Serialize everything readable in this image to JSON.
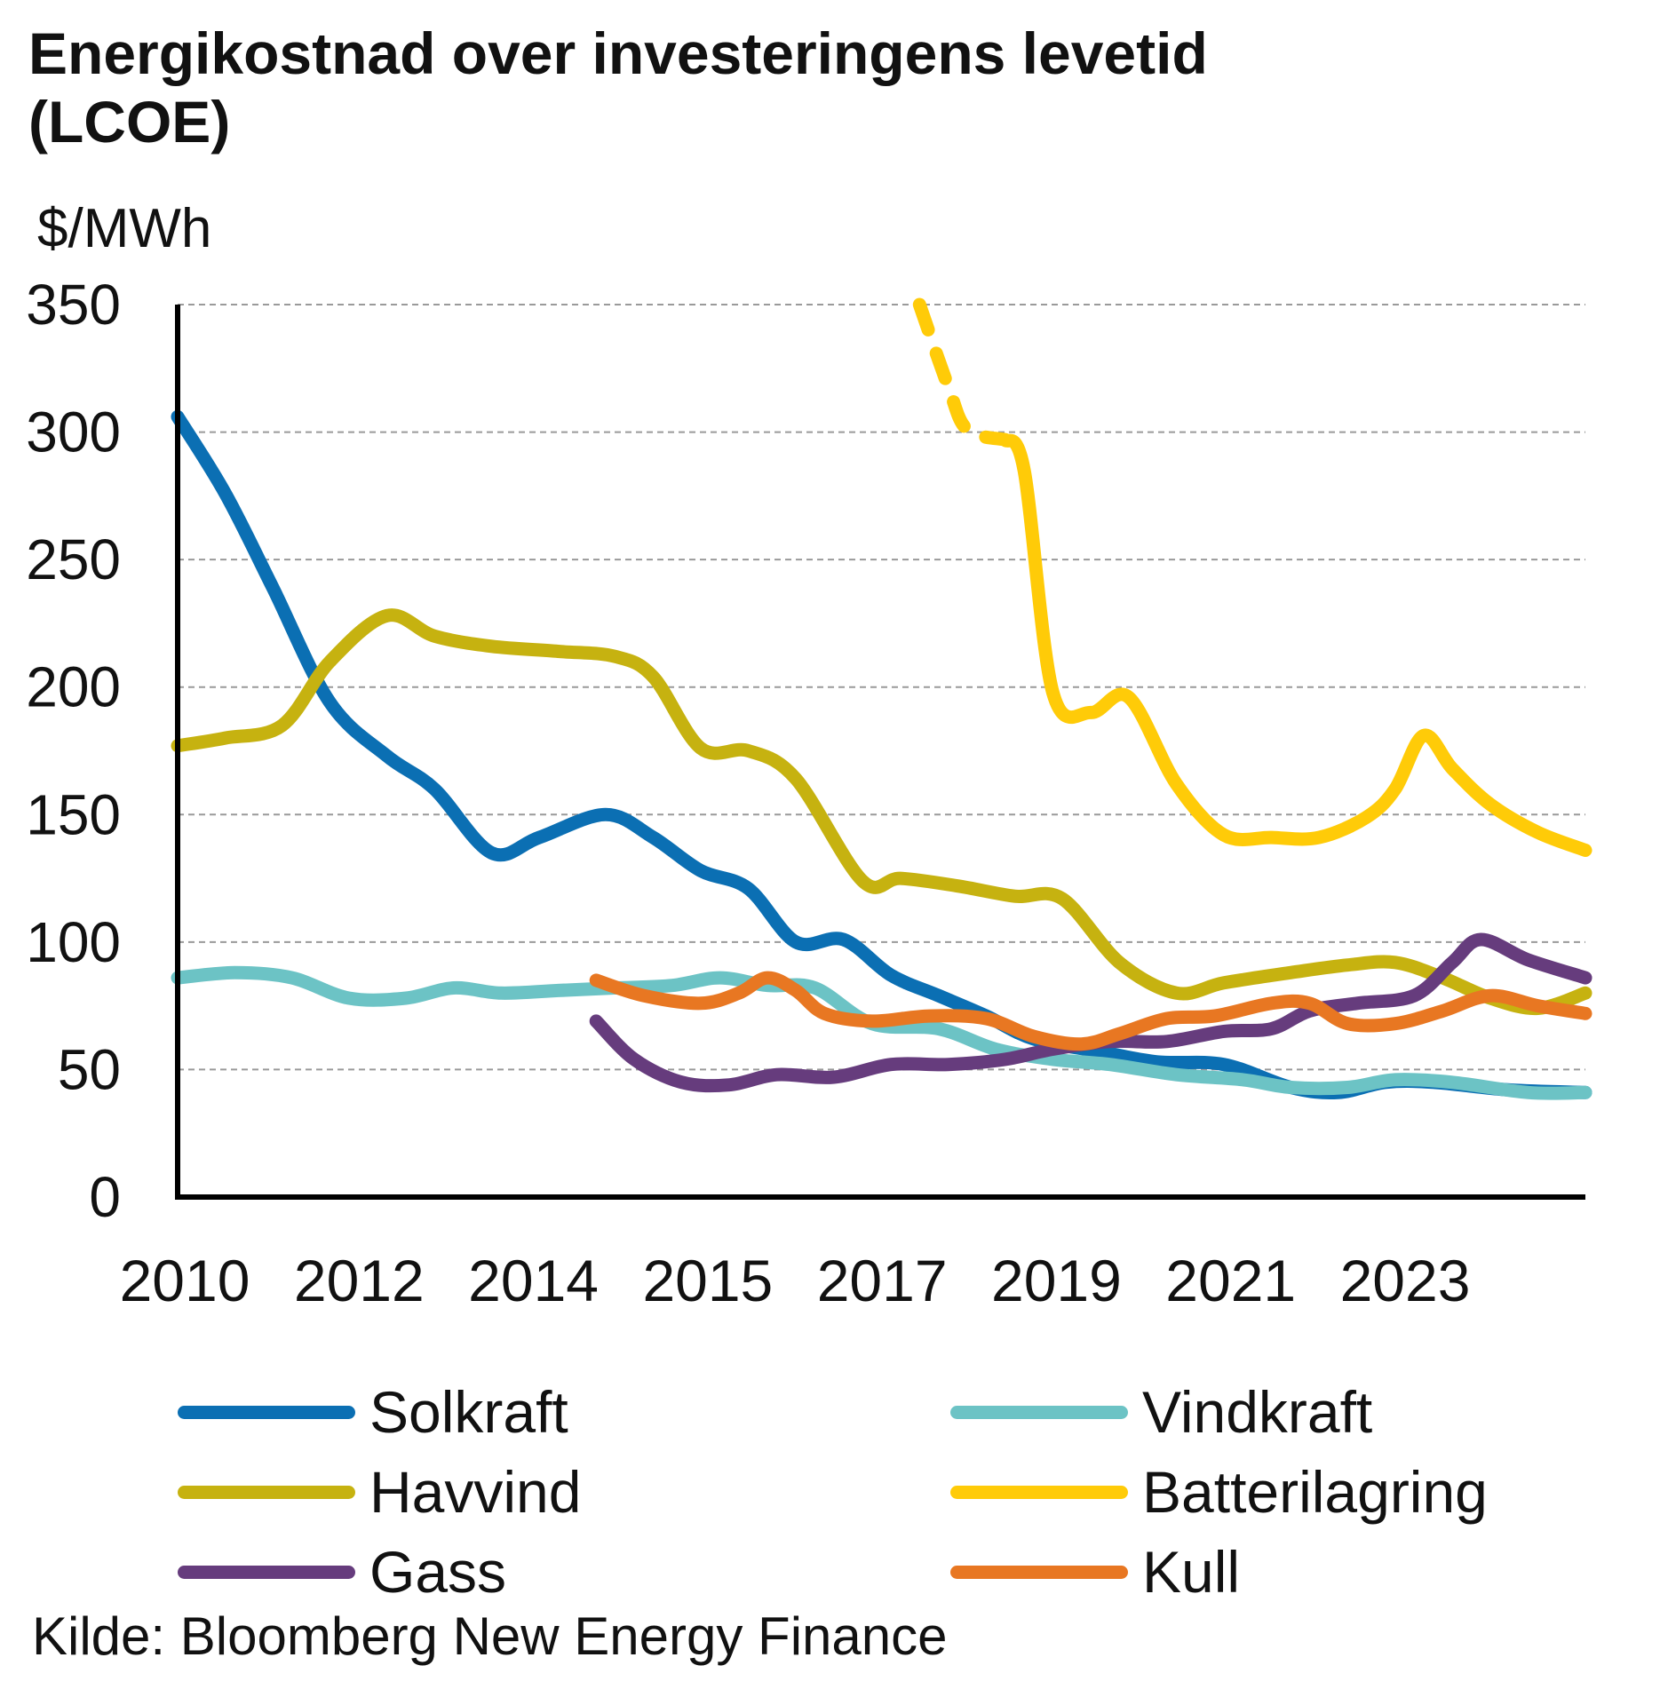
{
  "title": "Energikostnad over investeringens levetid (LCOE)",
  "source": "Kilde: Bloomberg New Energy Finance",
  "chart_data": {
    "type": "line",
    "title": "Energikostnad over investeringens levetid (LCOE)",
    "ylabel": "$/MWh",
    "xlabel": "",
    "ylim": [
      0,
      350
    ],
    "yticks": [
      "0",
      "50",
      "100",
      "150",
      "200",
      "250",
      "300",
      "350"
    ],
    "x_ticks": [
      "2010",
      "2012",
      "2014",
      "2015",
      "2017",
      "2019",
      "2021",
      "2023"
    ],
    "x_range": [
      0,
      14.8
    ],
    "grid": true,
    "legend_position": "bottom",
    "series": [
      {
        "name": "Solkraft",
        "color": "#0B6FB3",
        "points": [
          [
            0,
            306
          ],
          [
            0.5,
            276
          ],
          [
            1,
            239
          ],
          [
            1.6,
            194
          ],
          [
            2.2,
            173
          ],
          [
            2.7,
            160
          ],
          [
            3.3,
            135
          ],
          [
            3.8,
            141
          ],
          [
            4.5,
            150
          ],
          [
            5.0,
            141
          ],
          [
            5.5,
            128
          ],
          [
            6.0,
            121
          ],
          [
            6.5,
            100
          ],
          [
            7.0,
            101
          ],
          [
            7.5,
            87
          ],
          [
            8.0,
            79
          ],
          [
            8.5,
            71
          ],
          [
            9.0,
            62
          ],
          [
            9.7,
            57
          ],
          [
            10.3,
            53
          ],
          [
            11.0,
            52
          ],
          [
            11.7,
            43
          ],
          [
            12.2,
            41
          ],
          [
            12.7,
            45
          ],
          [
            13.2,
            45
          ],
          [
            14.0,
            42
          ],
          [
            14.8,
            41
          ]
        ]
      },
      {
        "name": "Vindkraft",
        "color": "#6CC3C5",
        "points": [
          [
            0,
            86
          ],
          [
            0.6,
            88
          ],
          [
            1.2,
            86
          ],
          [
            1.8,
            78
          ],
          [
            2.4,
            78
          ],
          [
            2.9,
            82
          ],
          [
            3.4,
            80
          ],
          [
            4.0,
            81
          ],
          [
            4.6,
            82
          ],
          [
            5.2,
            83
          ],
          [
            5.7,
            86
          ],
          [
            6.2,
            83
          ],
          [
            6.7,
            82
          ],
          [
            7.3,
            68
          ],
          [
            8.0,
            66
          ],
          [
            8.6,
            58
          ],
          [
            9.2,
            54
          ],
          [
            9.8,
            52
          ],
          [
            10.5,
            48
          ],
          [
            11.2,
            46
          ],
          [
            11.7,
            43
          ],
          [
            12.3,
            43
          ],
          [
            12.8,
            46
          ],
          [
            13.4,
            45
          ],
          [
            14.2,
            41
          ],
          [
            14.8,
            41
          ]
        ]
      },
      {
        "name": "Havvind",
        "color": "#C6B210",
        "points": [
          [
            0,
            177
          ],
          [
            0.5,
            180
          ],
          [
            1.1,
            185
          ],
          [
            1.6,
            210
          ],
          [
            2.2,
            228
          ],
          [
            2.7,
            220
          ],
          [
            3.3,
            216
          ],
          [
            4.0,
            214
          ],
          [
            4.6,
            212
          ],
          [
            5.0,
            204
          ],
          [
            5.5,
            176
          ],
          [
            6.0,
            175
          ],
          [
            6.5,
            164
          ],
          [
            7.2,
            124
          ],
          [
            7.6,
            125
          ],
          [
            8.2,
            122
          ],
          [
            8.8,
            118
          ],
          [
            9.3,
            117
          ],
          [
            9.9,
            92
          ],
          [
            10.5,
            80
          ],
          [
            11.0,
            84
          ],
          [
            11.7,
            88
          ],
          [
            12.3,
            91
          ],
          [
            12.8,
            92
          ],
          [
            13.3,
            86
          ],
          [
            13.8,
            78
          ],
          [
            14.3,
            74
          ],
          [
            14.8,
            80
          ]
        ]
      },
      {
        "name": "Batterilagring",
        "color": "#FFCB08",
        "points_dashed": [
          [
            7.8,
            350
          ],
          [
            8.1,
            318
          ],
          [
            8.3,
            301
          ],
          [
            8.7,
            297
          ]
        ],
        "points": [
          [
            8.7,
            297
          ],
          [
            8.9,
            285
          ],
          [
            9.2,
            198
          ],
          [
            9.6,
            190
          ],
          [
            10.0,
            196
          ],
          [
            10.5,
            162
          ],
          [
            11.0,
            142
          ],
          [
            11.5,
            141
          ],
          [
            12.0,
            141
          ],
          [
            12.5,
            149
          ],
          [
            12.8,
            160
          ],
          [
            13.1,
            181
          ],
          [
            13.4,
            168
          ],
          [
            13.8,
            154
          ],
          [
            14.3,
            143
          ],
          [
            14.8,
            136
          ]
        ]
      },
      {
        "name": "Gass",
        "color": "#663C7D",
        "points": [
          [
            4.4,
            69
          ],
          [
            4.8,
            54
          ],
          [
            5.3,
            45
          ],
          [
            5.8,
            44
          ],
          [
            6.3,
            48
          ],
          [
            6.9,
            47
          ],
          [
            7.5,
            52
          ],
          [
            8.1,
            52
          ],
          [
            8.7,
            54
          ],
          [
            9.2,
            58
          ],
          [
            9.8,
            61
          ],
          [
            10.4,
            61
          ],
          [
            11.0,
            65
          ],
          [
            11.5,
            66
          ],
          [
            11.9,
            73
          ],
          [
            12.4,
            76
          ],
          [
            13.0,
            79
          ],
          [
            13.4,
            92
          ],
          [
            13.7,
            101
          ],
          [
            14.2,
            93
          ],
          [
            14.8,
            86
          ]
        ]
      },
      {
        "name": "Kull",
        "color": "#E87722",
        "points": [
          [
            4.4,
            85
          ],
          [
            4.9,
            79
          ],
          [
            5.5,
            76
          ],
          [
            5.9,
            80
          ],
          [
            6.2,
            86
          ],
          [
            6.5,
            81
          ],
          [
            6.8,
            72
          ],
          [
            7.3,
            69
          ],
          [
            7.9,
            71
          ],
          [
            8.5,
            70
          ],
          [
            9.0,
            63
          ],
          [
            9.5,
            60
          ],
          [
            9.9,
            64
          ],
          [
            10.4,
            70
          ],
          [
            10.9,
            71
          ],
          [
            11.5,
            76
          ],
          [
            11.9,
            76
          ],
          [
            12.3,
            68
          ],
          [
            12.8,
            68
          ],
          [
            13.3,
            73
          ],
          [
            13.8,
            79
          ],
          [
            14.3,
            75
          ],
          [
            14.8,
            72
          ]
        ]
      }
    ]
  }
}
